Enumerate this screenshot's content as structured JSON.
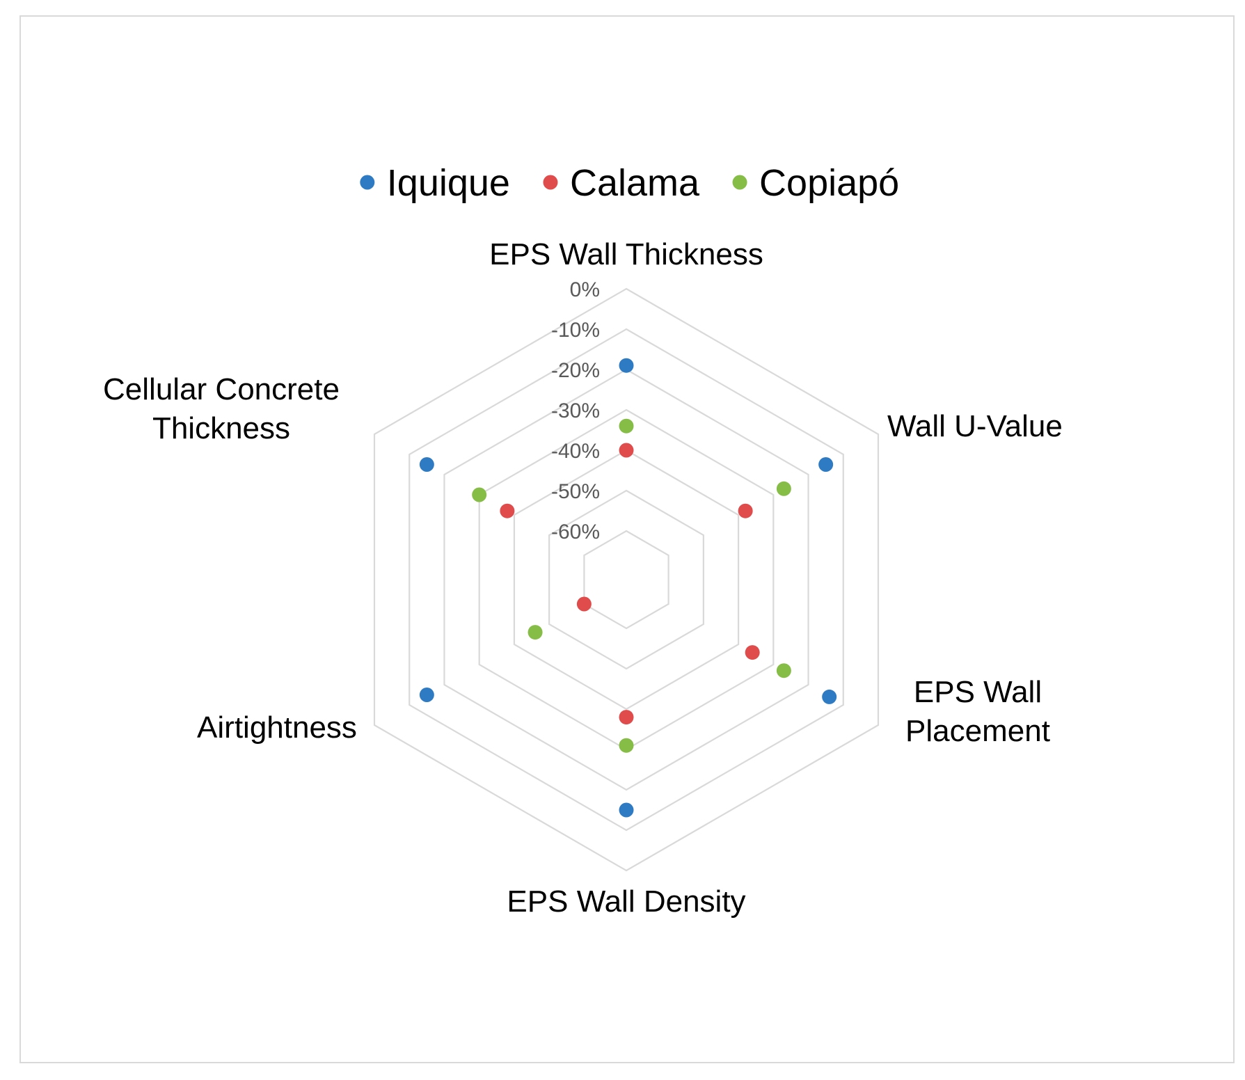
{
  "chart_data": {
    "type": "radar",
    "title": "",
    "axes": [
      "EPS Wall Thickness",
      "Wall U-Value",
      "EPS Wall Placement",
      "EPS Wall Density",
      "Airtightness",
      "Cellular Concrete Thickness"
    ],
    "axis_label_lines": [
      [
        "EPS Wall Thickness"
      ],
      [
        "Wall U-Value"
      ],
      [
        "EPS Wall",
        "Placement"
      ],
      [
        "EPS Wall Density"
      ],
      [
        "Airtightness"
      ],
      [
        "Cellular Concrete",
        "Thickness"
      ]
    ],
    "range": [
      -60,
      0
    ],
    "unit": "%",
    "ticks": [
      0,
      -10,
      -20,
      -30,
      -40,
      -50,
      -60
    ],
    "tick_labels": [
      "0%",
      "-10%",
      "-20%",
      "-30%",
      "-40%",
      "-50%",
      "-60%"
    ],
    "grid": true,
    "legend_position": "top",
    "series": [
      {
        "name": "Iquique",
        "color": "#2e7bc4",
        "values": [
          -19,
          -15,
          -14,
          -15,
          -15,
          -15
        ]
      },
      {
        "name": "Calama",
        "color": "#e04b4b",
        "values": [
          -40,
          -38,
          -36,
          -38,
          -60,
          -38
        ]
      },
      {
        "name": "Copiapó",
        "color": "#86bd47",
        "values": [
          -34,
          -27,
          -27,
          -31,
          -46,
          -30
        ]
      }
    ]
  }
}
